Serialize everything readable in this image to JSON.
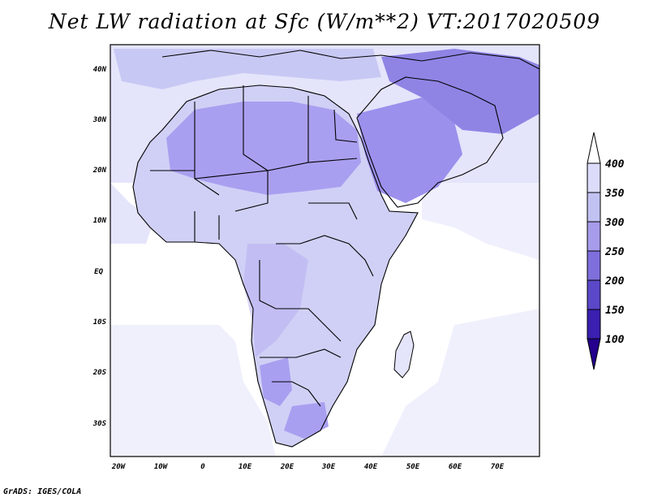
{
  "title": "Net LW radiation at Sfc (W/m**2) VT:2017020509",
  "footer": "GrADS: IGES/COLA",
  "lat_labels": [
    "40N",
    "30N",
    "20N",
    "10N",
    "EQ",
    "10S",
    "20S",
    "30S"
  ],
  "lon_labels": [
    "20W",
    "10W",
    "0",
    "10E",
    "20E",
    "30E",
    "40E",
    "50E",
    "60E",
    "70E"
  ],
  "colorbar": {
    "labels": [
      "400",
      "350",
      "300",
      "250",
      "200",
      "150",
      "100"
    ],
    "colors": {
      "gt400": "#ffffff",
      "c350_400": "#dcdcfa",
      "c300_350": "#c2c2f2",
      "c250_300": "#a79ceb",
      "c200_250": "#7f6fdc",
      "c150_200": "#5a48c8",
      "c100_150": "#3a1fb0",
      "lt100": "#24008c"
    }
  },
  "map_colors": {
    "ocean_low": "#ffffff",
    "light": "#e2e2fb",
    "mid": "#c8c8f4",
    "dark": "#a99ff0",
    "darker": "#8f84e4",
    "border": "#000000"
  }
}
